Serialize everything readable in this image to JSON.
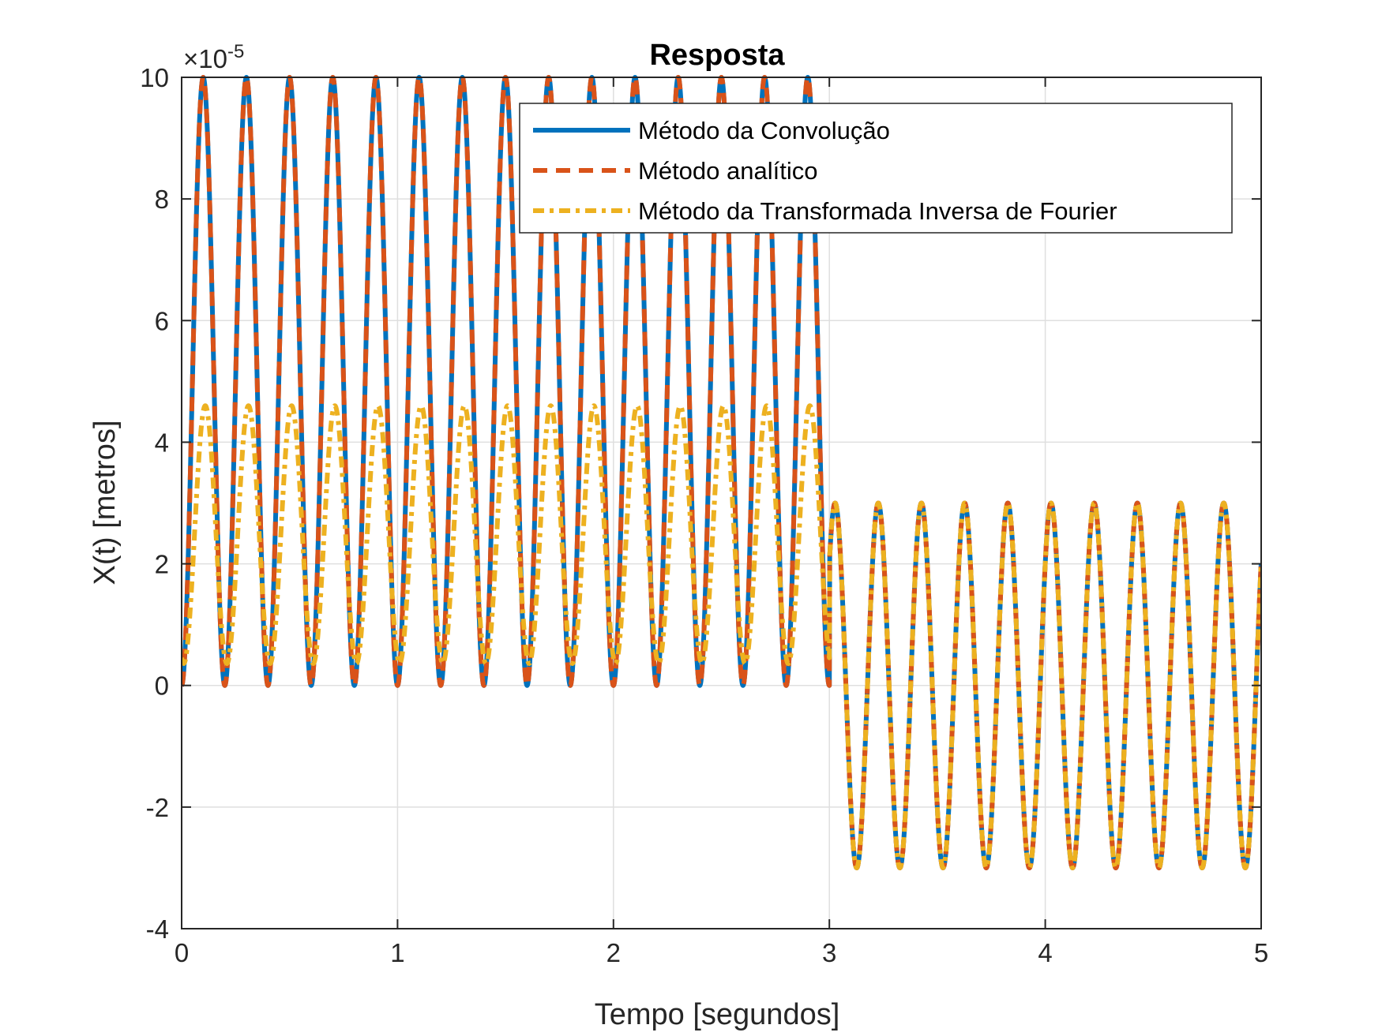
{
  "chart_data": {
    "type": "line",
    "title": "Resposta",
    "xlabel": "Tempo [segundos]",
    "ylabel": "X(t) [metros]",
    "y_exponent_base": "×10",
    "y_exponent_power": "-5",
    "xlim": [
      0,
      5
    ],
    "ylim": [
      -4,
      10
    ],
    "x_ticks": [
      0,
      1,
      2,
      3,
      4,
      5
    ],
    "x_tick_labels": [
      "0",
      "1",
      "2",
      "3",
      "4",
      "5"
    ],
    "y_ticks": [
      -4,
      -2,
      0,
      2,
      4,
      6,
      8,
      10
    ],
    "y_tick_labels": [
      "-4",
      "-2",
      "0",
      "2",
      "4",
      "6",
      "8",
      "10"
    ],
    "grid": true,
    "legend_position": "top-right",
    "series": [
      {
        "name": "Método da Convolução",
        "color": "#0072BD",
        "style": "solid",
        "model": "x(t) = 5(1 - cos(10πt)) for t ≤ 3; x(t) = 3 sin(10πt + 0.735) for t > 3 (×10^-5 m)",
        "piecewise": [
          {
            "t_range": [
              0,
              3
            ],
            "offset": 5,
            "amplitude": 5,
            "frequency_hz": 5,
            "peak_value": 10,
            "min_value": 0
          },
          {
            "t_range": [
              3,
              5
            ],
            "offset": 0,
            "amplitude": 3,
            "frequency_hz": 5,
            "peak_value": 3,
            "min_value": -3,
            "phase": 0.735
          }
        ]
      },
      {
        "name": "Método analítico",
        "color": "#D95319",
        "style": "dashed",
        "piecewise": [
          {
            "t_range": [
              0,
              3
            ],
            "offset": 5,
            "amplitude": 5,
            "frequency_hz": 5,
            "peak_value": 10,
            "min_value": 0
          },
          {
            "t_range": [
              3,
              5
            ],
            "offset": 0,
            "amplitude": 3,
            "frequency_hz": 5,
            "peak_value": 3,
            "min_value": -3,
            "phase": 0.735
          }
        ]
      },
      {
        "name": "Método da Transformada Inversa de Fourier",
        "color": "#EDB120",
        "style": "dash-dot",
        "piecewise": [
          {
            "t_range": [
              0,
              3
            ],
            "offset": 2.48,
            "amplitude": 2.12,
            "frequency_hz": 5,
            "peak_value": 4.6,
            "min_value": 0.36,
            "phase": 0.3
          },
          {
            "t_range": [
              3,
              5
            ],
            "offset": 0,
            "amplitude": 3,
            "frequency_hz": 5,
            "peak_value": 3,
            "min_value": -3,
            "phase": 0.735
          }
        ]
      }
    ]
  }
}
